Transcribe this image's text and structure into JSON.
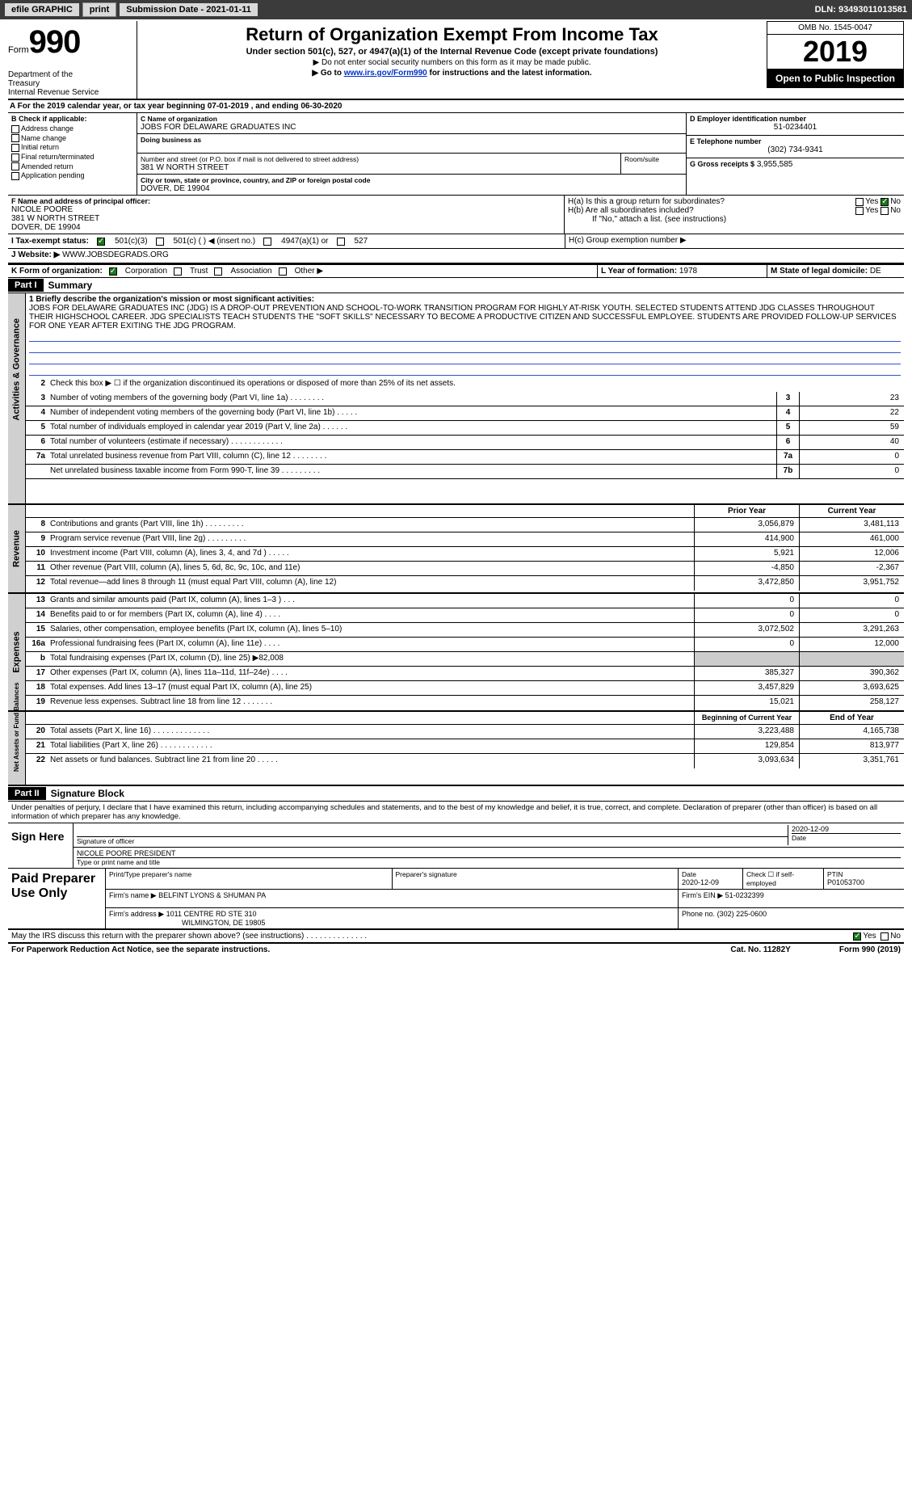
{
  "toolbar": {
    "efile": "efile GRAPHIC",
    "print": "print",
    "sub_date_label": "Submission Date - 2021-01-11",
    "dln_label": "DLN: 93493011013581"
  },
  "header": {
    "form_label": "Form",
    "form_number": "990",
    "dept": "Department of the Treasury\nInternal Revenue Service",
    "title": "Return of Organization Exempt From Income Tax",
    "subtitle": "Under section 501(c), 527, or 4947(a)(1) of the Internal Revenue Code (except private foundations)",
    "note1": "▶ Do not enter social security numbers on this form as it may be made public.",
    "note2_pre": "▶ Go to ",
    "note2_link": "www.irs.gov/Form990",
    "note2_post": " for instructions and the latest information.",
    "omb": "OMB No. 1545-0047",
    "year": "2019",
    "inspection": "Open to Public Inspection"
  },
  "line_a": "A For the 2019 calendar year, or tax year beginning 07-01-2019    , and ending 06-30-2020",
  "box_b": {
    "title": "B Check if applicable:",
    "items": [
      "Address change",
      "Name change",
      "Initial return",
      "Final return/terminated",
      "Amended return",
      "Application pending"
    ]
  },
  "box_c": {
    "name_lbl": "C Name of organization",
    "name": "JOBS FOR DELAWARE GRADUATES INC",
    "dba_lbl": "Doing business as",
    "dba": "",
    "addr_lbl": "Number and street (or P.O. box if mail is not delivered to street address)",
    "addr": "381 W NORTH STREET",
    "room_lbl": "Room/suite",
    "city_lbl": "City or town, state or province, country, and ZIP or foreign postal code",
    "city": "DOVER, DE  19904"
  },
  "box_d": {
    "lbl": "D Employer identification number",
    "val": "51-0234401"
  },
  "box_e": {
    "lbl": "E Telephone number",
    "val": "(302) 734-9341"
  },
  "box_g": {
    "lbl": "G Gross receipts $",
    "val": "3,955,585"
  },
  "box_f": {
    "lbl": "F  Name and address of principal officer:",
    "name": "NICOLE POORE",
    "addr1": "381 W NORTH STREET",
    "addr2": "DOVER, DE  19904"
  },
  "box_h": {
    "ha": "H(a)  Is this a group return for subordinates?",
    "hb": "H(b)  Are all subordinates included?",
    "hb_note": "If \"No,\" attach a list. (see instructions)",
    "hc": "H(c)  Group exemption number ▶",
    "yes": "Yes",
    "no": "No"
  },
  "line_i": {
    "lbl": "I   Tax-exempt status:",
    "o1": "501(c)(3)",
    "o2": "501(c) (   ) ◀ (insert no.)",
    "o3": "4947(a)(1) or",
    "o4": "527"
  },
  "line_j": {
    "lbl": "J   Website: ▶",
    "val": "WWW.JOBSDEGRADS.ORG"
  },
  "line_k": {
    "lbl": "K Form of organization:",
    "o1": "Corporation",
    "o2": "Trust",
    "o3": "Association",
    "o4": "Other ▶"
  },
  "line_l": {
    "lbl": "L Year of formation:",
    "val": "1978"
  },
  "line_m": {
    "lbl": "M State of legal domicile:",
    "val": "DE"
  },
  "part1": {
    "hdr": "Part I",
    "title": "Summary"
  },
  "summary": {
    "q1_lbl": "1  Briefly describe the organization's mission or most significant activities:",
    "q1_text": "JOBS FOR DELAWARE GRADUATES INC (JDG) IS A DROP-OUT PREVENTION AND SCHOOL-TO-WORK TRANSITION PROGRAM FOR HIGHLY AT-RISK YOUTH. SELECTED STUDENTS ATTEND JDG CLASSES THROUGHOUT THEIR HIGHSCHOOL CAREER. JDG SPECIALISTS TEACH STUDENTS THE \"SOFT SKILLS\" NECESSARY TO BECOME A PRODUCTIVE CITIZEN AND SUCCESSFUL EMPLOYEE. STUDENTS ARE PROVIDED FOLLOW-UP SERVICES FOR ONE YEAR AFTER EXITING THE JDG PROGRAM.",
    "q2": "Check this box ▶ ☐ if the organization discontinued its operations or disposed of more than 25% of its net assets.",
    "rows_ag": [
      {
        "n": "3",
        "d": "Number of voting members of the governing body (Part VI, line 1a)   .    .    .    .    .    .    .    .",
        "b": "3",
        "v": "23"
      },
      {
        "n": "4",
        "d": "Number of independent voting members of the governing body (Part VI, line 1b)    .    .    .    .    .",
        "b": "4",
        "v": "22"
      },
      {
        "n": "5",
        "d": "Total number of individuals employed in calendar year 2019 (Part V, line 2a)    .    .    .    .    .    .",
        "b": "5",
        "v": "59"
      },
      {
        "n": "6",
        "d": "Total number of volunteers (estimate if necessary)    .    .    .    .    .    .    .    .    .    .    .    .",
        "b": "6",
        "v": "40"
      },
      {
        "n": "7a",
        "d": "Total unrelated business revenue from Part VIII, column (C), line 12    .    .    .    .    .    .    .    .",
        "b": "7a",
        "v": "0"
      },
      {
        "n": "",
        "d": "Net unrelated business taxable income from Form 990-T, line 39    .    .    .    .    .    .    .    .    .",
        "b": "7b",
        "v": "0"
      }
    ],
    "hdr_prior": "Prior Year",
    "hdr_current": "Current Year",
    "rows_rev": [
      {
        "n": "8",
        "d": "Contributions and grants (Part VIII, line 1h)    .    .    .    .    .    .    .    .    .",
        "p": "3,056,879",
        "c": "3,481,113"
      },
      {
        "n": "9",
        "d": "Program service revenue (Part VIII, line 2g)    .    .    .    .    .    .    .    .    .",
        "p": "414,900",
        "c": "461,000"
      },
      {
        "n": "10",
        "d": "Investment income (Part VIII, column (A), lines 3, 4, and 7d )    .    .    .    .    .",
        "p": "5,921",
        "c": "12,006"
      },
      {
        "n": "11",
        "d": "Other revenue (Part VIII, column (A), lines 5, 6d, 8c, 9c, 10c, and 11e)",
        "p": "-4,850",
        "c": "-2,367"
      },
      {
        "n": "12",
        "d": "Total revenue—add lines 8 through 11 (must equal Part VIII, column (A), line 12)",
        "p": "3,472,850",
        "c": "3,951,752"
      }
    ],
    "rows_exp": [
      {
        "n": "13",
        "d": "Grants and similar amounts paid (Part IX, column (A), lines 1–3 )    .    .    .",
        "p": "0",
        "c": "0"
      },
      {
        "n": "14",
        "d": "Benefits paid to or for members (Part IX, column (A), line 4)    .    .    .    .",
        "p": "0",
        "c": "0"
      },
      {
        "n": "15",
        "d": "Salaries, other compensation, employee benefits (Part IX, column (A), lines 5–10)",
        "p": "3,072,502",
        "c": "3,291,263"
      },
      {
        "n": "16a",
        "d": "Professional fundraising fees (Part IX, column (A), line 11e)    .    .    .    .",
        "p": "0",
        "c": "12,000"
      },
      {
        "n": "b",
        "d": "Total fundraising expenses (Part IX, column (D), line 25) ▶82,008",
        "p": "",
        "c": ""
      },
      {
        "n": "17",
        "d": "Other expenses (Part IX, column (A), lines 11a–11d, 11f–24e)    .    .    .    .",
        "p": "385,327",
        "c": "390,362"
      },
      {
        "n": "18",
        "d": "Total expenses. Add lines 13–17 (must equal Part IX, column (A), line 25)",
        "p": "3,457,829",
        "c": "3,693,625"
      },
      {
        "n": "19",
        "d": "Revenue less expenses. Subtract line 18 from line 12    .    .    .    .    .    .    .",
        "p": "15,021",
        "c": "258,127"
      }
    ],
    "hdr_begin": "Beginning of Current Year",
    "hdr_end": "End of Year",
    "rows_na": [
      {
        "n": "20",
        "d": "Total assets (Part X, line 16)    .    .    .    .    .    .    .    .    .    .    .    .    .",
        "p": "3,223,488",
        "c": "4,165,738"
      },
      {
        "n": "21",
        "d": "Total liabilities (Part X, line 26)    .    .    .    .    .    .    .    .    .    .    .    .",
        "p": "129,854",
        "c": "813,977"
      },
      {
        "n": "22",
        "d": "Net assets or fund balances. Subtract line 21 from line 20    .    .    .    .    .",
        "p": "3,093,634",
        "c": "3,351,761"
      }
    ],
    "tabs": {
      "ag": "Activities & Governance",
      "rev": "Revenue",
      "exp": "Expenses",
      "na": "Net Assets or Fund Balances"
    }
  },
  "part2": {
    "hdr": "Part II",
    "title": "Signature Block"
  },
  "sig": {
    "declaration": "Under penalties of perjury, I declare that I have examined this return, including accompanying schedules and statements, and to the best of my knowledge and belief, it is true, correct, and complete. Declaration of preparer (other than officer) is based on all information of which preparer has any knowledge.",
    "sign_here": "Sign Here",
    "sig_officer_lbl": "Signature of officer",
    "sig_date": "2020-12-09",
    "date_lbl": "Date",
    "name_title": "NICOLE POORE  PRESIDENT",
    "name_title_lbl": "Type or print name and title"
  },
  "prep": {
    "title": "Paid Preparer Use Only",
    "print_lbl": "Print/Type preparer's name",
    "sig_lbl": "Preparer's signature",
    "date_lbl": "Date",
    "date": "2020-12-09",
    "check_lbl": "Check ☐ if self-employed",
    "ptin_lbl": "PTIN",
    "ptin": "P01053700",
    "firm_name_lbl": "Firm's name    ▶",
    "firm_name": "BELFINT LYONS & SHUMAN PA",
    "firm_ein_lbl": "Firm's EIN ▶",
    "firm_ein": "51-0232399",
    "firm_addr_lbl": "Firm's address ▶",
    "firm_addr1": "1011 CENTRE RD STE 310",
    "firm_addr2": "WILMINGTON, DE  19805",
    "phone_lbl": "Phone no.",
    "phone": "(302) 225-0600"
  },
  "footer": {
    "discuss": "May the IRS discuss this return with the preparer shown above? (see instructions)    .    .    .    .    .    .    .    .    .    .    .    .    .    .",
    "yes": "Yes",
    "no": "No",
    "paperwork": "For Paperwork Reduction Act Notice, see the separate instructions.",
    "cat": "Cat. No. 11282Y",
    "form": "Form 990 (2019)"
  }
}
